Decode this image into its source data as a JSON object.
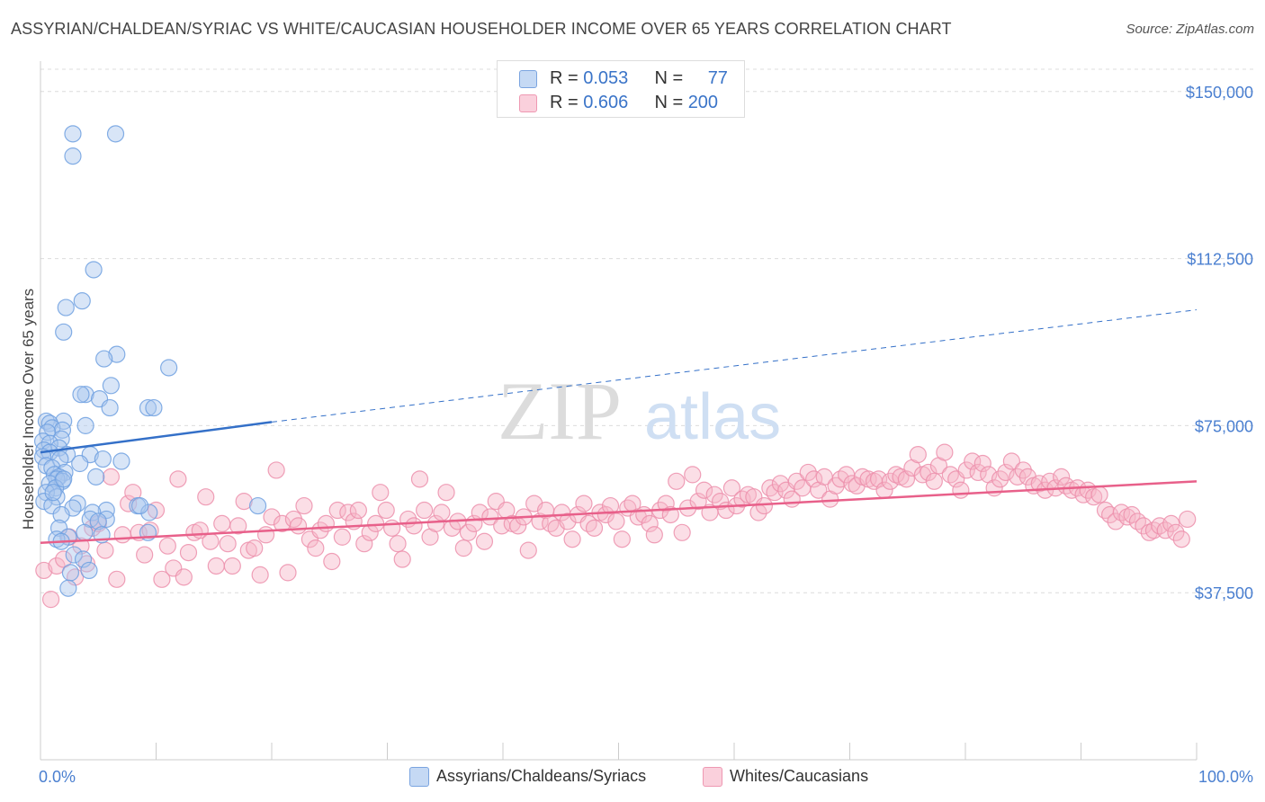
{
  "title": "ASSYRIAN/CHALDEAN/SYRIAC VS WHITE/CAUCASIAN HOUSEHOLDER INCOME OVER 65 YEARS CORRELATION CHART",
  "source": "Source: ZipAtlas.com",
  "watermark": {
    "zip": "ZIP",
    "atlas": "atlas"
  },
  "legend_top": {
    "rows": [
      {
        "r_label": "R = ",
        "r_value": "0.053",
        "n_label": "N = ",
        "n_value": "77",
        "color": "#a9c6ee"
      },
      {
        "r_label": "R = ",
        "r_value": "0.606",
        "n_label": "N = ",
        "n_value": "200",
        "color": "#f6b6c8"
      }
    ]
  },
  "legend_bottom": [
    {
      "label": "Assyrians/Chaldeans/Syriacs",
      "color": "#a9c6ee"
    },
    {
      "label": "Whites/Caucasians",
      "color": "#f6b6c8"
    }
  ],
  "chart_data": {
    "type": "scatter",
    "ylabel": "Householder Income Over 65 years",
    "xlim": [
      0,
      100
    ],
    "ylim": [
      0,
      155000
    ],
    "x_tick_labels": [
      "0.0%",
      "100.0%"
    ],
    "y_ticks": [
      {
        "value": 37500,
        "label": "$37,500"
      },
      {
        "value": 75000,
        "label": "$75,000"
      },
      {
        "value": 112500,
        "label": "$112,500"
      },
      {
        "value": 150000,
        "label": "$150,000"
      }
    ],
    "grid": true,
    "legend_placement": "top-center",
    "series": [
      {
        "name": "Assyrians/Chaldeans/Syriacs",
        "color": "#6fa0e0",
        "fill": "#a9c6ee",
        "trend": {
          "x0": 0,
          "y0": 69000,
          "x1": 20,
          "y1": 75800,
          "dash_x1": 100,
          "dash_y1": 101000,
          "color": "#3470c8"
        },
        "points": [
          [
            2.8,
            140500
          ],
          [
            6.5,
            140500
          ],
          [
            2.8,
            135500
          ],
          [
            4.6,
            110000
          ],
          [
            3.6,
            103000
          ],
          [
            2.2,
            101500
          ],
          [
            2.0,
            96000
          ],
          [
            6.6,
            91000
          ],
          [
            5.5,
            90000
          ],
          [
            11.1,
            88000
          ],
          [
            6.1,
            84000
          ],
          [
            3.9,
            82000
          ],
          [
            3.5,
            82000
          ],
          [
            5.1,
            81000
          ],
          [
            6.0,
            79000
          ],
          [
            9.3,
            79000
          ],
          [
            9.8,
            79000
          ],
          [
            2.0,
            76000
          ],
          [
            0.5,
            76000
          ],
          [
            0.8,
            75500
          ],
          [
            3.9,
            75000
          ],
          [
            1.0,
            74500
          ],
          [
            1.9,
            74000
          ],
          [
            0.6,
            73500
          ],
          [
            1.8,
            72000
          ],
          [
            0.2,
            71500
          ],
          [
            0.8,
            71000
          ],
          [
            1.6,
            70000
          ],
          [
            0.3,
            69500
          ],
          [
            0.8,
            69000
          ],
          [
            2.3,
            68500
          ],
          [
            0.2,
            68000
          ],
          [
            4.3,
            68500
          ],
          [
            1.7,
            67500
          ],
          [
            5.4,
            67500
          ],
          [
            7.0,
            67000
          ],
          [
            3.4,
            66500
          ],
          [
            0.5,
            66000
          ],
          [
            1.0,
            65500
          ],
          [
            2.1,
            64500
          ],
          [
            1.2,
            64000
          ],
          [
            1.6,
            63500
          ],
          [
            1.4,
            63000
          ],
          [
            1.9,
            62500
          ],
          [
            4.8,
            63500
          ],
          [
            0.8,
            62000
          ],
          [
            1.3,
            61000
          ],
          [
            0.5,
            60000
          ],
          [
            1.4,
            59000
          ],
          [
            0.3,
            58000
          ],
          [
            1.0,
            57000
          ],
          [
            8.4,
            57000
          ],
          [
            18.8,
            57000
          ],
          [
            3.2,
            57500
          ],
          [
            2.8,
            56500
          ],
          [
            5.7,
            56000
          ],
          [
            4.5,
            55500
          ],
          [
            1.8,
            55000
          ],
          [
            9.4,
            55500
          ],
          [
            5.7,
            54000
          ],
          [
            4.3,
            54000
          ],
          [
            5.0,
            53500
          ],
          [
            1.6,
            52000
          ],
          [
            3.8,
            51000
          ],
          [
            5.3,
            50500
          ],
          [
            9.3,
            51000
          ],
          [
            2.4,
            50000
          ],
          [
            1.4,
            49500
          ],
          [
            1.8,
            49000
          ],
          [
            2.9,
            46000
          ],
          [
            3.7,
            45000
          ],
          [
            4.2,
            42500
          ],
          [
            2.6,
            42000
          ],
          [
            2.4,
            38500
          ],
          [
            8.6,
            57000
          ],
          [
            2.0,
            63000
          ],
          [
            1.1,
            60000
          ]
        ]
      },
      {
        "name": "Whites/Caucasians",
        "color": "#ec8fab",
        "fill": "#f6b6c8",
        "trend": {
          "x0": 0,
          "y0": 48700,
          "x1": 100,
          "y1": 62500,
          "color": "#e8608a"
        },
        "points": [
          [
            0.3,
            42500
          ],
          [
            0.9,
            36000
          ],
          [
            1.4,
            43500
          ],
          [
            2.0,
            45000
          ],
          [
            2.5,
            50000
          ],
          [
            3.0,
            41000
          ],
          [
            3.5,
            48000
          ],
          [
            4.0,
            44000
          ],
          [
            4.5,
            52000
          ],
          [
            5.0,
            53000
          ],
          [
            5.6,
            47000
          ],
          [
            6.1,
            63500
          ],
          [
            6.6,
            40500
          ],
          [
            7.1,
            50500
          ],
          [
            7.6,
            57500
          ],
          [
            8.0,
            60000
          ],
          [
            8.5,
            51000
          ],
          [
            9.0,
            46000
          ],
          [
            9.5,
            51500
          ],
          [
            10.0,
            56000
          ],
          [
            10.5,
            40500
          ],
          [
            11.0,
            48000
          ],
          [
            11.5,
            43000
          ],
          [
            11.9,
            63000
          ],
          [
            12.4,
            41000
          ],
          [
            12.8,
            46500
          ],
          [
            13.3,
            51000
          ],
          [
            13.8,
            51500
          ],
          [
            14.3,
            59000
          ],
          [
            14.7,
            49000
          ],
          [
            15.2,
            43500
          ],
          [
            15.7,
            53000
          ],
          [
            16.2,
            48500
          ],
          [
            16.6,
            43500
          ],
          [
            17.1,
            52500
          ],
          [
            17.6,
            58000
          ],
          [
            18.0,
            47000
          ],
          [
            18.5,
            47500
          ],
          [
            19.0,
            41500
          ],
          [
            19.5,
            50500
          ],
          [
            20.0,
            54500
          ],
          [
            20.4,
            65000
          ],
          [
            20.9,
            53000
          ],
          [
            21.4,
            42000
          ],
          [
            21.9,
            54000
          ],
          [
            22.3,
            52500
          ],
          [
            22.8,
            57000
          ],
          [
            23.3,
            49500
          ],
          [
            23.8,
            47500
          ],
          [
            24.2,
            51500
          ],
          [
            24.7,
            53000
          ],
          [
            25.2,
            44500
          ],
          [
            25.7,
            56000
          ],
          [
            26.1,
            50000
          ],
          [
            26.6,
            55500
          ],
          [
            27.1,
            53500
          ],
          [
            27.5,
            56000
          ],
          [
            28.0,
            48500
          ],
          [
            28.5,
            51000
          ],
          [
            29.0,
            53000
          ],
          [
            29.4,
            60000
          ],
          [
            29.9,
            56000
          ],
          [
            30.4,
            52000
          ],
          [
            30.9,
            48500
          ],
          [
            31.3,
            45000
          ],
          [
            31.8,
            54000
          ],
          [
            32.3,
            52500
          ],
          [
            32.8,
            63000
          ],
          [
            33.2,
            56000
          ],
          [
            33.7,
            50000
          ],
          [
            34.2,
            53000
          ],
          [
            34.7,
            55500
          ],
          [
            35.1,
            60000
          ],
          [
            35.6,
            52000
          ],
          [
            36.1,
            53500
          ],
          [
            36.6,
            47500
          ],
          [
            37.0,
            51000
          ],
          [
            37.5,
            53000
          ],
          [
            38.0,
            55500
          ],
          [
            38.4,
            49000
          ],
          [
            38.9,
            54500
          ],
          [
            39.4,
            58000
          ],
          [
            39.9,
            52500
          ],
          [
            40.3,
            56000
          ],
          [
            40.8,
            53000
          ],
          [
            41.3,
            52500
          ],
          [
            41.8,
            54500
          ],
          [
            42.2,
            47000
          ],
          [
            42.7,
            57500
          ],
          [
            43.2,
            53500
          ],
          [
            43.7,
            56000
          ],
          [
            44.1,
            53000
          ],
          [
            44.6,
            52000
          ],
          [
            45.1,
            55500
          ],
          [
            45.6,
            53500
          ],
          [
            46.0,
            49500
          ],
          [
            46.5,
            55000
          ],
          [
            47.0,
            57500
          ],
          [
            47.4,
            53000
          ],
          [
            47.9,
            52000
          ],
          [
            48.4,
            55500
          ],
          [
            48.9,
            55000
          ],
          [
            49.3,
            57000
          ],
          [
            49.8,
            53500
          ],
          [
            50.3,
            49500
          ],
          [
            50.8,
            56500
          ],
          [
            51.2,
            57500
          ],
          [
            51.7,
            54500
          ],
          [
            52.2,
            55000
          ],
          [
            52.7,
            53000
          ],
          [
            53.1,
            50500
          ],
          [
            53.6,
            56000
          ],
          [
            54.1,
            57500
          ],
          [
            54.5,
            55000
          ],
          [
            55.0,
            62500
          ],
          [
            55.5,
            51000
          ],
          [
            56.0,
            56500
          ],
          [
            56.4,
            64000
          ],
          [
            56.9,
            58000
          ],
          [
            57.4,
            60500
          ],
          [
            57.9,
            55500
          ],
          [
            58.3,
            59500
          ],
          [
            58.8,
            58000
          ],
          [
            59.3,
            56000
          ],
          [
            59.8,
            61000
          ],
          [
            60.2,
            57000
          ],
          [
            60.7,
            58500
          ],
          [
            61.2,
            59500
          ],
          [
            61.7,
            59000
          ],
          [
            62.1,
            55500
          ],
          [
            62.6,
            57000
          ],
          [
            63.1,
            61000
          ],
          [
            63.5,
            60000
          ],
          [
            64.0,
            62000
          ],
          [
            64.5,
            60500
          ],
          [
            65.0,
            58500
          ],
          [
            65.4,
            62500
          ],
          [
            65.9,
            61000
          ],
          [
            66.4,
            64500
          ],
          [
            66.9,
            63000
          ],
          [
            67.3,
            60500
          ],
          [
            67.8,
            63500
          ],
          [
            68.3,
            58500
          ],
          [
            68.8,
            61500
          ],
          [
            69.2,
            63000
          ],
          [
            69.7,
            64000
          ],
          [
            70.2,
            62000
          ],
          [
            70.6,
            61500
          ],
          [
            71.1,
            63500
          ],
          [
            71.6,
            63000
          ],
          [
            72.1,
            62500
          ],
          [
            72.5,
            63000
          ],
          [
            73.0,
            60500
          ],
          [
            73.5,
            62500
          ],
          [
            74.0,
            64000
          ],
          [
            74.4,
            63500
          ],
          [
            74.9,
            63000
          ],
          [
            75.4,
            65500
          ],
          [
            75.9,
            68500
          ],
          [
            76.3,
            64000
          ],
          [
            76.8,
            64500
          ],
          [
            77.3,
            62500
          ],
          [
            77.7,
            66000
          ],
          [
            78.2,
            69000
          ],
          [
            78.7,
            64000
          ],
          [
            79.2,
            63000
          ],
          [
            79.6,
            60500
          ],
          [
            80.1,
            65000
          ],
          [
            80.6,
            67000
          ],
          [
            81.1,
            64500
          ],
          [
            81.5,
            66500
          ],
          [
            82.0,
            64000
          ],
          [
            82.5,
            61000
          ],
          [
            83.0,
            63000
          ],
          [
            83.5,
            64500
          ],
          [
            84.0,
            67000
          ],
          [
            84.5,
            63500
          ],
          [
            85.0,
            65000
          ],
          [
            85.4,
            63500
          ],
          [
            85.9,
            61500
          ],
          [
            86.4,
            62000
          ],
          [
            86.9,
            60500
          ],
          [
            87.3,
            62500
          ],
          [
            87.8,
            61000
          ],
          [
            88.3,
            63500
          ],
          [
            88.7,
            61500
          ],
          [
            89.2,
            60500
          ],
          [
            89.7,
            61000
          ],
          [
            90.2,
            59500
          ],
          [
            90.6,
            60500
          ],
          [
            91.1,
            59000
          ],
          [
            91.6,
            59500
          ],
          [
            92.1,
            56000
          ],
          [
            92.5,
            55000
          ],
          [
            93.0,
            53500
          ],
          [
            93.5,
            55500
          ],
          [
            94.0,
            54500
          ],
          [
            94.4,
            55000
          ],
          [
            94.9,
            53500
          ],
          [
            95.4,
            52500
          ],
          [
            95.9,
            51000
          ],
          [
            96.3,
            51500
          ],
          [
            96.8,
            52500
          ],
          [
            97.3,
            51500
          ],
          [
            97.8,
            53000
          ],
          [
            98.2,
            51000
          ],
          [
            98.7,
            49500
          ],
          [
            99.2,
            54000
          ]
        ]
      }
    ]
  }
}
